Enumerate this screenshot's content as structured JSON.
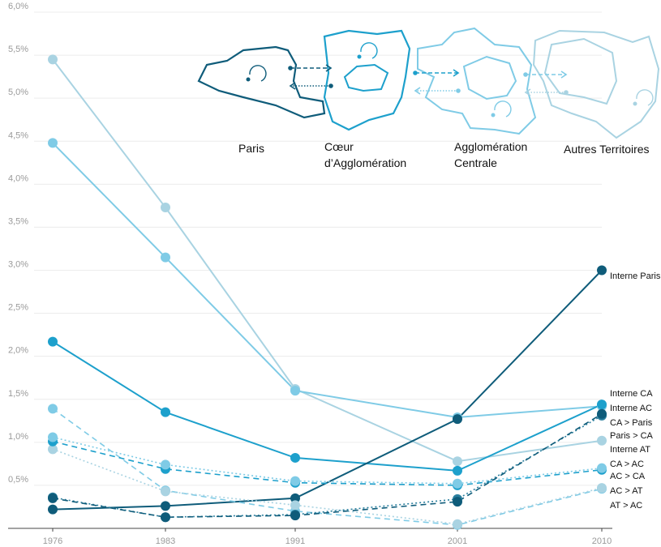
{
  "chart_data": {
    "type": "line",
    "x": [
      "1976",
      "1983",
      "1991",
      "2001",
      "2010"
    ],
    "ylim": [
      0,
      6.0
    ],
    "yticks": [
      "0,5%",
      "1,0%",
      "1,5%",
      "2,0%",
      "2,5%",
      "3,0%",
      "3,5%",
      "4,0%",
      "4,5%",
      "5,0%",
      "5,5%",
      "6,0%"
    ],
    "ytick_values": [
      0.5,
      1.0,
      1.5,
      2.0,
      2.5,
      3.0,
      3.5,
      4.0,
      4.5,
      5.0,
      5.5,
      6.0
    ],
    "grid": true,
    "series": [
      {
        "name": "Interne AT",
        "color": "#a9d3e2",
        "dash": "solid",
        "values": [
          5.45,
          3.73,
          1.62,
          0.78,
          1.02
        ]
      },
      {
        "name": "Interne CA",
        "color": "#7fcbe6",
        "dash": "solid",
        "values": [
          4.48,
          3.15,
          1.6,
          1.29,
          1.42
        ]
      },
      {
        "name": "Interne AC",
        "color": "#1da0cc",
        "dash": "solid",
        "values": [
          2.17,
          1.35,
          0.82,
          0.67,
          1.44
        ]
      },
      {
        "name": "Interne Paris",
        "color": "#0f5c7a",
        "dash": "solid",
        "values": [
          0.22,
          0.26,
          0.35,
          1.27,
          3.0
        ]
      },
      {
        "name": "AT > AC",
        "color": "#7fcbe6",
        "dash": "dashed",
        "values": [
          1.39,
          0.44,
          0.2,
          0.04,
          0.46
        ]
      },
      {
        "name": "AC > AT",
        "color": "#a9d3e2",
        "dash": "dotted",
        "values": [
          0.92,
          0.43,
          0.27,
          0.05,
          0.47
        ]
      },
      {
        "name": "AC > CA",
        "color": "#1da0cc",
        "dash": "dashed",
        "values": [
          1.01,
          0.69,
          0.53,
          0.5,
          0.68
        ]
      },
      {
        "name": "CA > AC",
        "color": "#7fcbe6",
        "dotted_color": "#7fcbe6",
        "dash": "dotted",
        "values": [
          1.06,
          0.74,
          0.55,
          0.52,
          0.7
        ]
      },
      {
        "name": "Paris > CA",
        "color": "#2a7f9e",
        "dash": "dotted",
        "values": [
          0.36,
          0.13,
          0.16,
          0.34,
          1.31
        ]
      },
      {
        "name": "CA > Paris",
        "color": "#0f5c7a",
        "dash": "dashed",
        "values": [
          0.35,
          0.13,
          0.15,
          0.31,
          1.33
        ]
      }
    ],
    "end_labels": [
      "Interne Paris",
      "Interne CA",
      "Interne AC",
      "CA > Paris",
      "Paris > CA",
      "Interne  AT",
      "CA > AC",
      "AC > CA",
      "AC > AT",
      "AT > AC"
    ],
    "zones": [
      "Paris",
      "Cœur\nd’Agglomération",
      "Agglomération\nCentrale",
      "Autres Territoires"
    ],
    "zone_colors": [
      "#0f5c7a",
      "#1da0cc",
      "#7fcbe6",
      "#a9d3e2"
    ]
  }
}
